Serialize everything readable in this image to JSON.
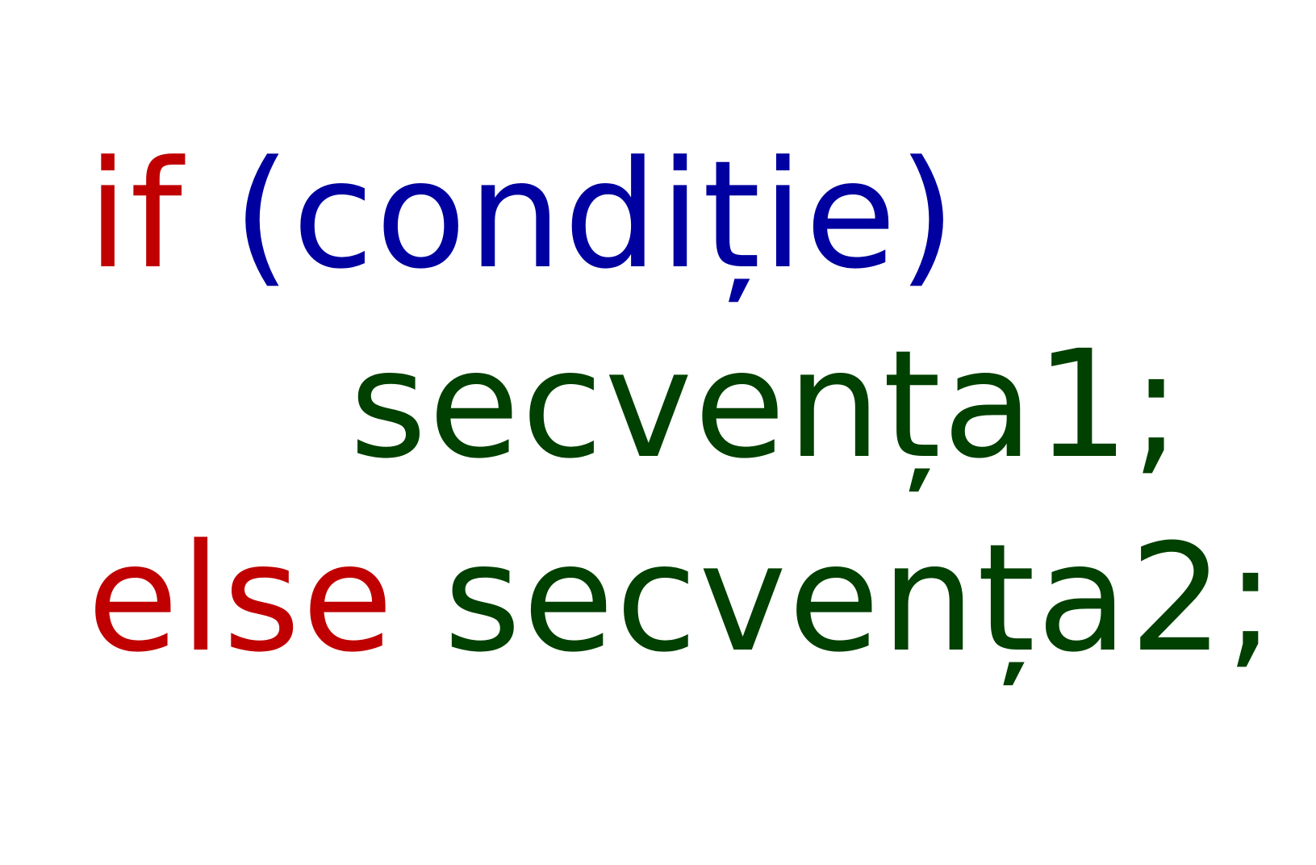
{
  "code": {
    "line1": {
      "keyword": "if",
      "condition": "(condiție)"
    },
    "line2": {
      "statement": "secvența1;"
    },
    "line3": {
      "keyword": "else",
      "statement": "secvența2;"
    }
  },
  "colors": {
    "keyword": "#c00000",
    "condition": "#0000a0",
    "statement": "#004000",
    "background": "#ffffff"
  }
}
